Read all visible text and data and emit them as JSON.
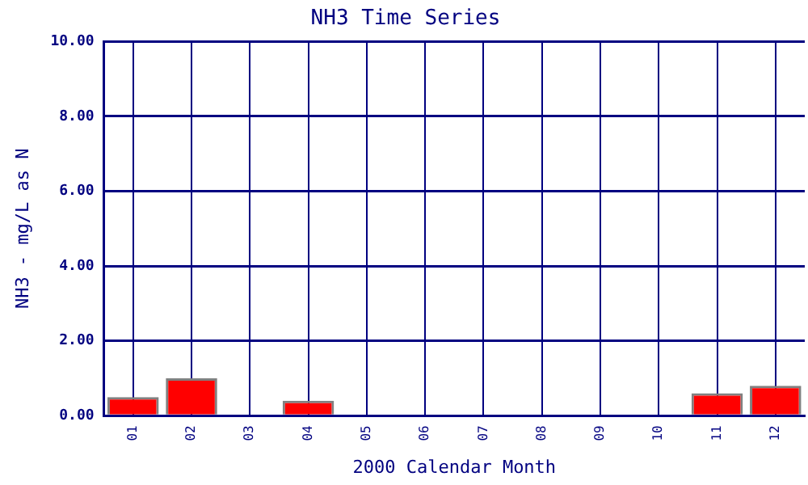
{
  "chart_data": {
    "type": "bar",
    "title": "NH3 Time Series",
    "xlabel": "2000 Calendar Month",
    "ylabel": "NH3 - mg/L as N",
    "categories": [
      "01",
      "02",
      "03",
      "04",
      "05",
      "06",
      "07",
      "08",
      "09",
      "10",
      "11",
      "12"
    ],
    "values": [
      0.5,
      1.0,
      0,
      0.4,
      0,
      0,
      0,
      0,
      0,
      0,
      0.6,
      0.8
    ],
    "color": "#ff0000",
    "ylim": [
      0,
      10
    ],
    "yticks": [
      {
        "value": 0,
        "label": "0.00"
      },
      {
        "value": 2,
        "label": "2.00"
      },
      {
        "value": 4,
        "label": "4.00"
      },
      {
        "value": 6,
        "label": "6.00"
      },
      {
        "value": 8,
        "label": "8.00"
      },
      {
        "value": 10,
        "label": "10.00"
      }
    ],
    "grid": true,
    "legend": false
  }
}
